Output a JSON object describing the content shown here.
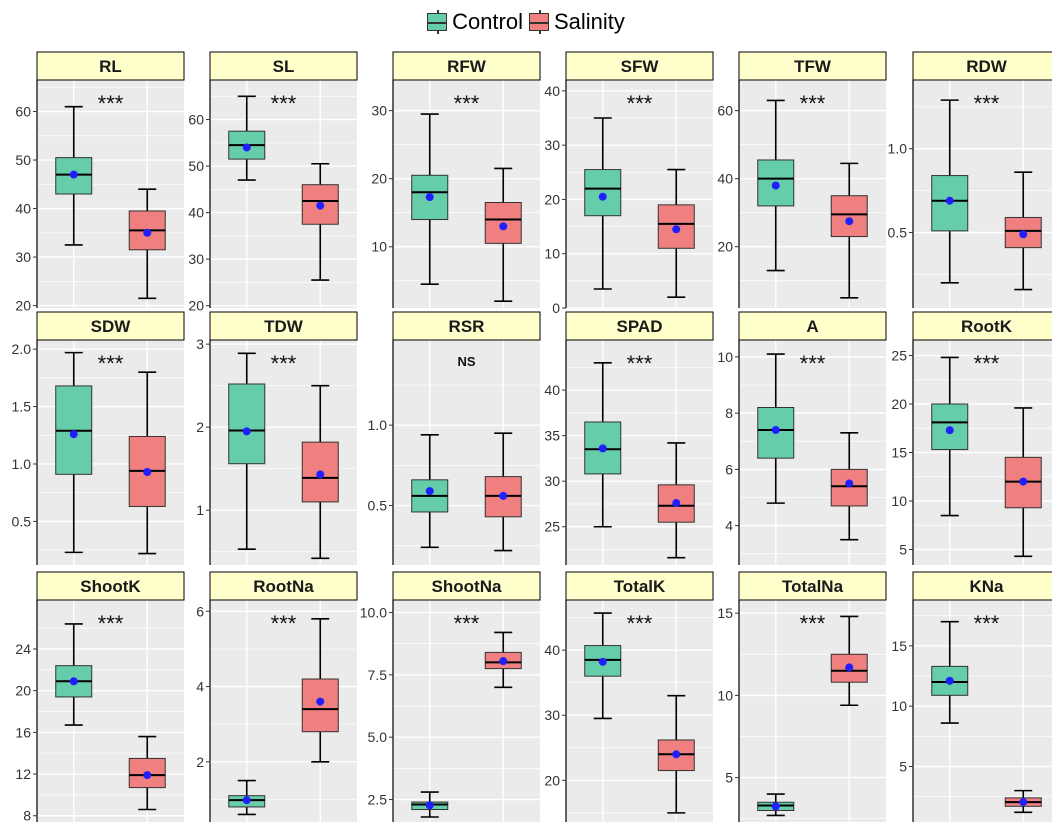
{
  "legend": {
    "items": [
      {
        "label": "Control",
        "color": "#66cdaa"
      },
      {
        "label": "Salinity",
        "color": "#f08080"
      }
    ]
  },
  "style": {
    "panel_bg": "#ebebeb",
    "grid_color": "#ffffff",
    "strip_bg": "#ffffcc",
    "mean_color": "#1f1fff",
    "box_line": "#333333"
  },
  "chart_data": {
    "type": "boxplot",
    "groups": [
      "Control",
      "Salinity"
    ],
    "panels": [
      {
        "name": "RL",
        "sig": "***",
        "ylim": [
          19.5,
          66.5
        ],
        "ticks": [
          20,
          30,
          40,
          50,
          60
        ],
        "boxes": [
          {
            "min": 32.5,
            "q1": 43,
            "median": 47,
            "q3": 50.5,
            "max": 61,
            "mean": 47
          },
          {
            "min": 21.5,
            "q1": 31.5,
            "median": 35.5,
            "q3": 39.5,
            "max": 44,
            "mean": 35
          }
        ]
      },
      {
        "name": "SL",
        "sig": "***",
        "ylim": [
          19.5,
          68.5
        ],
        "ticks": [
          20,
          30,
          40,
          50,
          60
        ],
        "boxes": [
          {
            "min": 47,
            "q1": 51.5,
            "median": 54.5,
            "q3": 57.5,
            "max": 65,
            "mean": 54
          },
          {
            "min": 25.5,
            "q1": 37.5,
            "median": 42.5,
            "q3": 46,
            "max": 50.5,
            "mean": 41.5
          }
        ]
      },
      {
        "name": "RFW",
        "sig": "***",
        "ylim": [
          1,
          34.5
        ],
        "ticks": [
          10,
          20,
          30
        ],
        "boxes": [
          {
            "min": 4.5,
            "q1": 14,
            "median": 18,
            "q3": 20.5,
            "max": 29.5,
            "mean": 17.3
          },
          {
            "min": 2,
            "q1": 10.5,
            "median": 14,
            "q3": 16.5,
            "max": 21.5,
            "mean": 13
          }
        ]
      },
      {
        "name": "SFW",
        "sig": "***",
        "ylim": [
          0,
          42
        ],
        "ticks": [
          0,
          10,
          20,
          30,
          40
        ],
        "boxes": [
          {
            "min": 3.5,
            "q1": 17,
            "median": 22,
            "q3": 25.5,
            "max": 35,
            "mean": 20.5
          },
          {
            "min": 2,
            "q1": 11,
            "median": 15.5,
            "q3": 19,
            "max": 25.5,
            "mean": 14.5
          }
        ]
      },
      {
        "name": "TFW",
        "sig": "***",
        "ylim": [
          2,
          69
        ],
        "ticks": [
          20,
          40,
          60
        ],
        "boxes": [
          {
            "min": 13,
            "q1": 32,
            "median": 40,
            "q3": 45.5,
            "max": 63,
            "mean": 38
          },
          {
            "min": 5,
            "q1": 23,
            "median": 29.5,
            "q3": 35,
            "max": 44.5,
            "mean": 27.5
          }
        ]
      },
      {
        "name": "RDW",
        "sig": "***",
        "ylim": [
          0.05,
          1.41
        ],
        "ticks": [
          0.5,
          1.0
        ],
        "boxes": [
          {
            "min": 0.2,
            "q1": 0.51,
            "median": 0.69,
            "q3": 0.84,
            "max": 1.29,
            "mean": 0.69
          },
          {
            "min": 0.16,
            "q1": 0.41,
            "median": 0.51,
            "q3": 0.59,
            "max": 0.86,
            "mean": 0.49
          }
        ]
      },
      {
        "name": "SDW",
        "sig": "***",
        "ylim": [
          0.12,
          2.08
        ],
        "ticks": [
          0.5,
          1.0,
          1.5,
          2.0
        ],
        "boxes": [
          {
            "min": 0.23,
            "q1": 0.91,
            "median": 1.29,
            "q3": 1.68,
            "max": 1.97,
            "mean": 1.26
          },
          {
            "min": 0.22,
            "q1": 0.63,
            "median": 0.94,
            "q3": 1.24,
            "max": 1.8,
            "mean": 0.93
          }
        ]
      },
      {
        "name": "TDW",
        "sig": "***",
        "ylim": [
          0.34,
          3.05
        ],
        "ticks": [
          1,
          2,
          3
        ],
        "boxes": [
          {
            "min": 0.53,
            "q1": 1.56,
            "median": 1.96,
            "q3": 2.52,
            "max": 2.89,
            "mean": 1.95
          },
          {
            "min": 0.42,
            "q1": 1.1,
            "median": 1.39,
            "q3": 1.82,
            "max": 2.5,
            "mean": 1.43
          }
        ]
      },
      {
        "name": "RSR",
        "sig": "NS",
        "ylim": [
          0.13,
          1.53
        ],
        "ticks": [
          0.5,
          1.0
        ],
        "boxes": [
          {
            "min": 0.24,
            "q1": 0.46,
            "median": 0.56,
            "q3": 0.66,
            "max": 0.94,
            "mean": 0.59
          },
          {
            "min": 0.22,
            "q1": 0.43,
            "median": 0.56,
            "q3": 0.68,
            "max": 0.95,
            "mean": 0.56
          }
        ]
      },
      {
        "name": "SPAD",
        "sig": "***",
        "ylim": [
          20.8,
          45.5
        ],
        "ticks": [
          25,
          30,
          35,
          40
        ],
        "boxes": [
          {
            "min": 25,
            "q1": 30.8,
            "median": 33.5,
            "q3": 36.5,
            "max": 43,
            "mean": 33.6
          },
          {
            "min": 21.6,
            "q1": 25.5,
            "median": 27.3,
            "q3": 29.6,
            "max": 34.2,
            "mean": 27.6
          }
        ]
      },
      {
        "name": "A",
        "sig": "***",
        "ylim": [
          2.6,
          10.6
        ],
        "ticks": [
          4,
          6,
          8,
          10
        ],
        "boxes": [
          {
            "min": 4.8,
            "q1": 6.4,
            "median": 7.4,
            "q3": 8.2,
            "max": 10.1,
            "mean": 7.4
          },
          {
            "min": 3.5,
            "q1": 4.7,
            "median": 5.4,
            "q3": 6.0,
            "max": 7.3,
            "mean": 5.5
          }
        ]
      },
      {
        "name": "RootK",
        "sig": "***",
        "ylim": [
          3.4,
          26.6
        ],
        "ticks": [
          5,
          10,
          15,
          20,
          25
        ],
        "boxes": [
          {
            "min": 8.5,
            "q1": 15.3,
            "median": 18.1,
            "q3": 20,
            "max": 24.8,
            "mean": 17.3
          },
          {
            "min": 4.3,
            "q1": 9.3,
            "median": 12,
            "q3": 14.5,
            "max": 19.6,
            "mean": 12
          }
        ]
      },
      {
        "name": "ShootK",
        "sig": "***",
        "ylim": [
          7.4,
          28.7
        ],
        "ticks": [
          8,
          12,
          16,
          20,
          24
        ],
        "boxes": [
          {
            "min": 16.7,
            "q1": 19.4,
            "median": 20.9,
            "q3": 22.4,
            "max": 26.4,
            "mean": 20.9
          },
          {
            "min": 8.6,
            "q1": 10.7,
            "median": 11.9,
            "q3": 13.5,
            "max": 15.6,
            "mean": 11.9
          }
        ]
      },
      {
        "name": "RootNa",
        "sig": "***",
        "ylim": [
          0.4,
          6.3
        ],
        "ticks": [
          2,
          4,
          6
        ],
        "boxes": [
          {
            "min": 0.6,
            "q1": 0.8,
            "median": 0.98,
            "q3": 1.1,
            "max": 1.5,
            "mean": 0.98
          },
          {
            "min": 2.0,
            "q1": 2.8,
            "median": 3.4,
            "q3": 4.2,
            "max": 5.8,
            "mean": 3.6
          }
        ]
      },
      {
        "name": "ShootNa",
        "sig": "***",
        "ylim": [
          1.6,
          10.5
        ],
        "ticks": [
          2.5,
          5.0,
          7.5,
          10.0
        ],
        "boxes": [
          {
            "min": 1.8,
            "q1": 2.1,
            "median": 2.3,
            "q3": 2.4,
            "max": 2.8,
            "mean": 2.27
          },
          {
            "min": 7.0,
            "q1": 7.75,
            "median": 8.0,
            "q3": 8.4,
            "max": 9.2,
            "mean": 8.05
          }
        ]
      },
      {
        "name": "TotalK",
        "sig": "***",
        "ylim": [
          13.6,
          47.7
        ],
        "ticks": [
          20,
          30,
          40
        ],
        "boxes": [
          {
            "min": 29.5,
            "q1": 36,
            "median": 38.5,
            "q3": 40.7,
            "max": 45.7,
            "mean": 38.2
          },
          {
            "min": 15,
            "q1": 21.5,
            "median": 24,
            "q3": 26.2,
            "max": 33,
            "mean": 24
          }
        ]
      },
      {
        "name": "TotalNa",
        "sig": "***",
        "ylim": [
          2.3,
          15.8
        ],
        "ticks": [
          5,
          10,
          15
        ],
        "boxes": [
          {
            "min": 2.7,
            "q1": 3.0,
            "median": 3.3,
            "q3": 3.5,
            "max": 4.0,
            "mean": 3.25
          },
          {
            "min": 9.4,
            "q1": 10.8,
            "median": 11.5,
            "q3": 12.5,
            "max": 14.8,
            "mean": 11.7
          }
        ]
      },
      {
        "name": "KNa",
        "sig": "***",
        "ylim": [
          0.4,
          18.8
        ],
        "ticks": [
          5,
          10,
          15
        ],
        "boxes": [
          {
            "min": 8.6,
            "q1": 10.9,
            "median": 12,
            "q3": 13.3,
            "max": 17,
            "mean": 12.1
          },
          {
            "min": 1.2,
            "q1": 1.7,
            "median": 2.05,
            "q3": 2.4,
            "max": 3.0,
            "mean": 2.05
          }
        ]
      }
    ]
  }
}
